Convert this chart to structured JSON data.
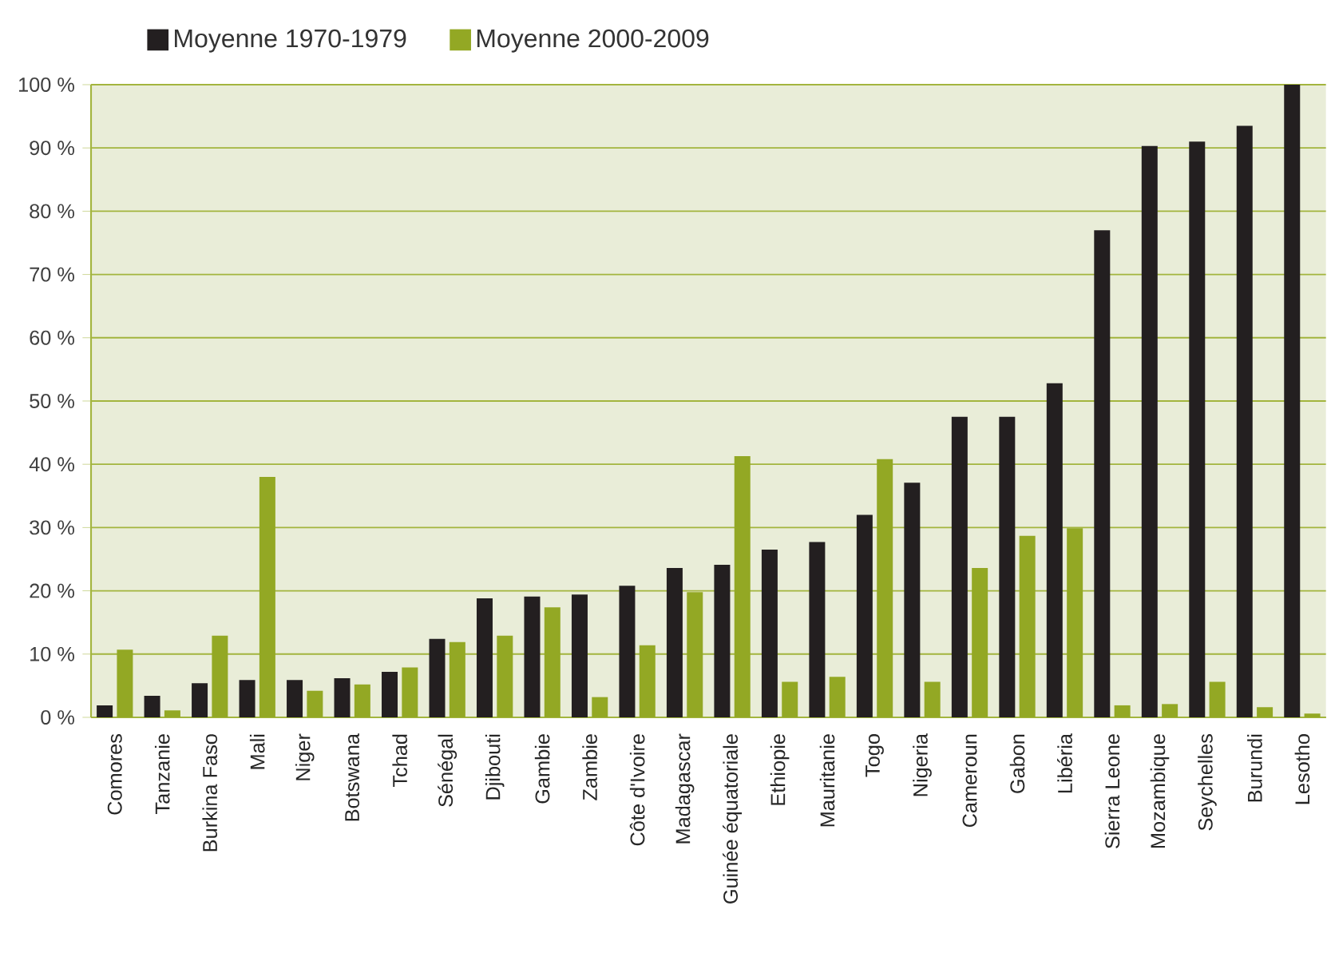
{
  "chart_data": {
    "type": "bar",
    "categories": [
      "Comores",
      "Tanzanie",
      "Burkina Faso",
      "Mali",
      "Niger",
      "Botswana",
      "Tchad",
      "Sénégal",
      "Djibouti",
      "Gambie",
      "Zambie",
      "Côte d'Ivoire",
      "Madagascar",
      "Guinée équatoriale",
      "Ethiopie",
      "Mauritanie",
      "Togo",
      "Nigeria",
      "Cameroun",
      "Gabon",
      "Libéria",
      "Sierra Leone",
      "Mozambique",
      "Seychelles",
      "Burundi",
      "Lesotho"
    ],
    "series": [
      {
        "name": "Moyenne 1970-1979",
        "color": "#231f20",
        "values": [
          1.9,
          3.4,
          5.4,
          5.9,
          5.9,
          6.2,
          7.2,
          12.4,
          18.8,
          19.1,
          19.4,
          20.8,
          23.6,
          24.1,
          26.5,
          27.7,
          32,
          37.1,
          47.5,
          47.5,
          52.8,
          77,
          90.3,
          91,
          93.5,
          100
        ]
      },
      {
        "name": "Moyenne 2000-2009",
        "color": "#93a824",
        "values": [
          10.7,
          1.1,
          12.9,
          38,
          4.2,
          5.2,
          7.9,
          11.9,
          12.9,
          17.4,
          3.2,
          11.4,
          19.8,
          41.3,
          5.6,
          6.4,
          40.8,
          5.6,
          23.6,
          28.7,
          29.9,
          1.9,
          2.1,
          5.6,
          1.6,
          0.6
        ]
      }
    ],
    "ylim": [
      0,
      100
    ],
    "yticks": [
      {
        "value": 0,
        "label": "0 %"
      },
      {
        "value": 10,
        "label": "10 %"
      },
      {
        "value": 20,
        "label": "20 %"
      },
      {
        "value": 30,
        "label": "30 %"
      },
      {
        "value": 40,
        "label": "40 %"
      },
      {
        "value": 50,
        "label": "50 %"
      },
      {
        "value": 60,
        "label": "60 %"
      },
      {
        "value": 70,
        "label": "70 %"
      },
      {
        "value": 80,
        "label": "80 %"
      },
      {
        "value": 90,
        "label": "90 %"
      },
      {
        "value": 100,
        "label": "100 %"
      }
    ],
    "grid": "y",
    "legend": "top"
  }
}
